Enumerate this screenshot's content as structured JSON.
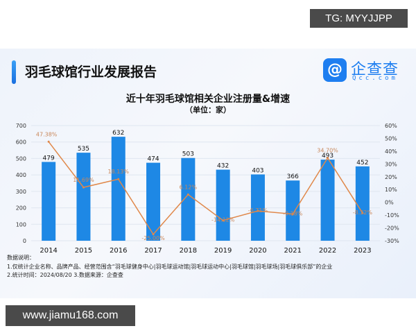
{
  "watermark_top": "TG: MYYJJPP",
  "watermark_bottom": "www.jiamu168.com",
  "header": {
    "title": "羽毛球馆行业发展报告",
    "logo_name": "企查查",
    "logo_sub": "Qcc.com",
    "logo_icon": "qcc-q-icon"
  },
  "chart_data": {
    "type": "bar+line",
    "title": "近十年羽毛球馆相关企业注册量&增速",
    "subtitle": "（单位：家）",
    "categories": [
      "2014",
      "2015",
      "2016",
      "2017",
      "2018",
      "2019",
      "2020",
      "2021",
      "2022",
      "2023"
    ],
    "series": [
      {
        "type": "bar",
        "axis": "left",
        "values": [
          479,
          535,
          632,
          474,
          503,
          432,
          403,
          366,
          493,
          452
        ],
        "labels": [
          "479",
          "535",
          "632",
          "474",
          "503",
          "432",
          "403",
          "366",
          "493",
          "452"
        ],
        "color": "#1e88e5"
      },
      {
        "type": "line",
        "axis": "right",
        "values": [
          47.38,
          11.69,
          18.13,
          -25.0,
          6.12,
          -14.12,
          -6.71,
          -9.18,
          34.7,
          -8.32
        ],
        "labels": [
          "47.38%",
          "11.69%",
          "18.13%",
          "-25.00%",
          "6.12%",
          "-14.12%",
          "-6.71%",
          "-9.18%",
          "34.70%",
          "-8.32%"
        ],
        "color": "#e0884a"
      }
    ],
    "ylim": [
      0,
      700
    ],
    "yticks": [
      "0",
      "100",
      "200",
      "300",
      "400",
      "500",
      "600",
      "700"
    ],
    "y2lim": [
      -30,
      60
    ],
    "y2ticks": [
      "-30%",
      "-20%",
      "-10%",
      "0%",
      "10%",
      "20%",
      "30%",
      "40%",
      "50%",
      "60%"
    ],
    "grid": true
  },
  "notes": {
    "heading": "数据说明：",
    "line1": "1.仅统计企业名称、品牌产品、经营范围含“羽毛球健身中心|羽毛球运动馆|羽毛球运动中心|羽毛球馆|羽毛球场|羽毛球俱乐部”的企业",
    "line2": "2.统计时间：2024/08/20    3.数据来源：企查查"
  }
}
